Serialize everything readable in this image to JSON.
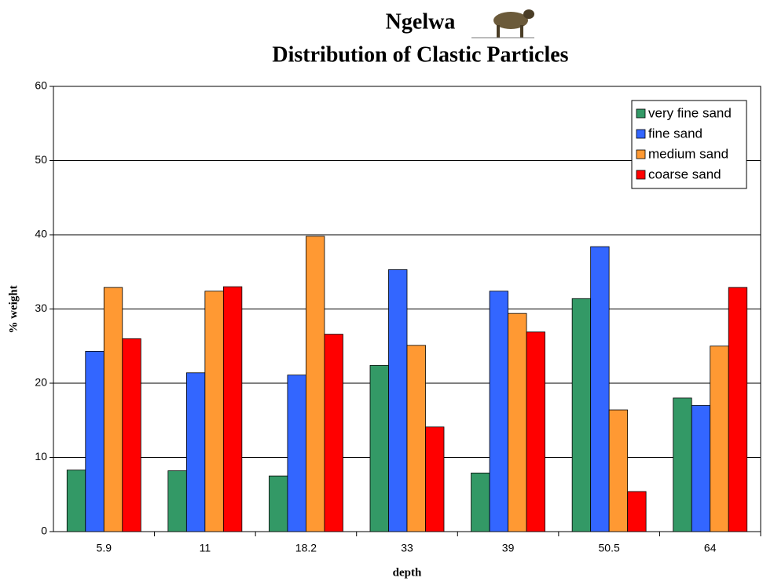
{
  "chart_data": {
    "type": "bar",
    "title": "Ngelwa",
    "subtitle": "Distribution of Clastic Particles",
    "x_label": "depth",
    "y_label": "% weight",
    "categories": [
      "5.9",
      "11",
      "18.2",
      "33",
      "39",
      "50.5",
      "64"
    ],
    "series": [
      {
        "name": "very fine sand",
        "color": "#339966",
        "values": [
          8.3,
          8.2,
          7.5,
          22.4,
          7.9,
          31.4,
          18.0
        ]
      },
      {
        "name": "fine sand",
        "color": "#3366ff",
        "values": [
          24.3,
          21.4,
          21.1,
          35.3,
          32.4,
          38.4,
          17.0
        ]
      },
      {
        "name": "medium sand",
        "color": "#ff9933",
        "values": [
          32.9,
          32.4,
          39.8,
          25.1,
          29.4,
          16.4,
          25.0
        ]
      },
      {
        "name": "coarse sand",
        "color": "#ff0000",
        "values": [
          26.0,
          33.0,
          26.6,
          14.1,
          26.9,
          5.4,
          32.9
        ]
      }
    ],
    "ylim": [
      0,
      60
    ],
    "yticks": [
      0,
      10,
      20,
      30,
      40,
      50,
      60
    ],
    "grid": true,
    "legend": "top-right"
  }
}
